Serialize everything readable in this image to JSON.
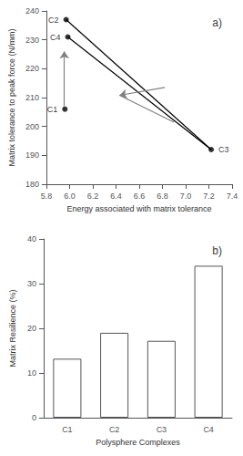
{
  "chart_data": [
    {
      "type": "scatter",
      "title": "a)",
      "xlabel": "Energy associated with matrix tolerance",
      "ylabel": "Matrix tolerance to peak force (N/mm)",
      "x": [
        5.96,
        5.97,
        5.985,
        7.22
      ],
      "values": [
        206,
        237,
        231,
        192
      ],
      "labels": [
        "C1",
        "C2",
        "C4",
        "C3"
      ],
      "color": "black",
      "lines": [
        {
          "x": [
            5.97,
            7.22
          ],
          "values": [
            237,
            192
          ],
          "color": "black"
        },
        {
          "x": [
            5.985,
            7.22
          ],
          "values": [
            231,
            192
          ],
          "color": "black"
        },
        {
          "x": [
            6.43,
            6.9
          ],
          "values": [
            210.8,
            201.5
          ],
          "color": "gray"
        }
      ],
      "arrows": [
        {
          "x": [
            5.955,
            5.955
          ],
          "values": [
            207,
            226
          ],
          "color": "gray"
        },
        {
          "x": [
            6.82,
            6.43
          ],
          "values": [
            213.5,
            210.8
          ],
          "color": "gray"
        }
      ],
      "xlim": [
        5.8,
        7.4
      ],
      "xticks": [
        5.8,
        {
          "value": 6,
          "label": "6.0"
        },
        6.2,
        6.4,
        6.6,
        6.8,
        {
          "value": 7,
          "label": "7.0"
        },
        7.2,
        7.4
      ],
      "ylim": [
        180,
        240
      ],
      "yticks": [
        180,
        190,
        200,
        210,
        220,
        230,
        240
      ],
      "grid": false
    },
    {
      "type": "bar",
      "title": "b)",
      "xlabel": "Polysphere Complexes",
      "ylabel": "Matrix Resilience (%)",
      "categories": [
        "C1",
        "C2",
        "C3",
        "C4"
      ],
      "values": [
        13.2,
        19.0,
        17.2,
        34.0
      ],
      "color": "white",
      "edge_color": "#555555",
      "ylim": [
        0,
        40
      ],
      "yticks": [
        0,
        10,
        20,
        30,
        40
      ],
      "grid": false
    }
  ]
}
